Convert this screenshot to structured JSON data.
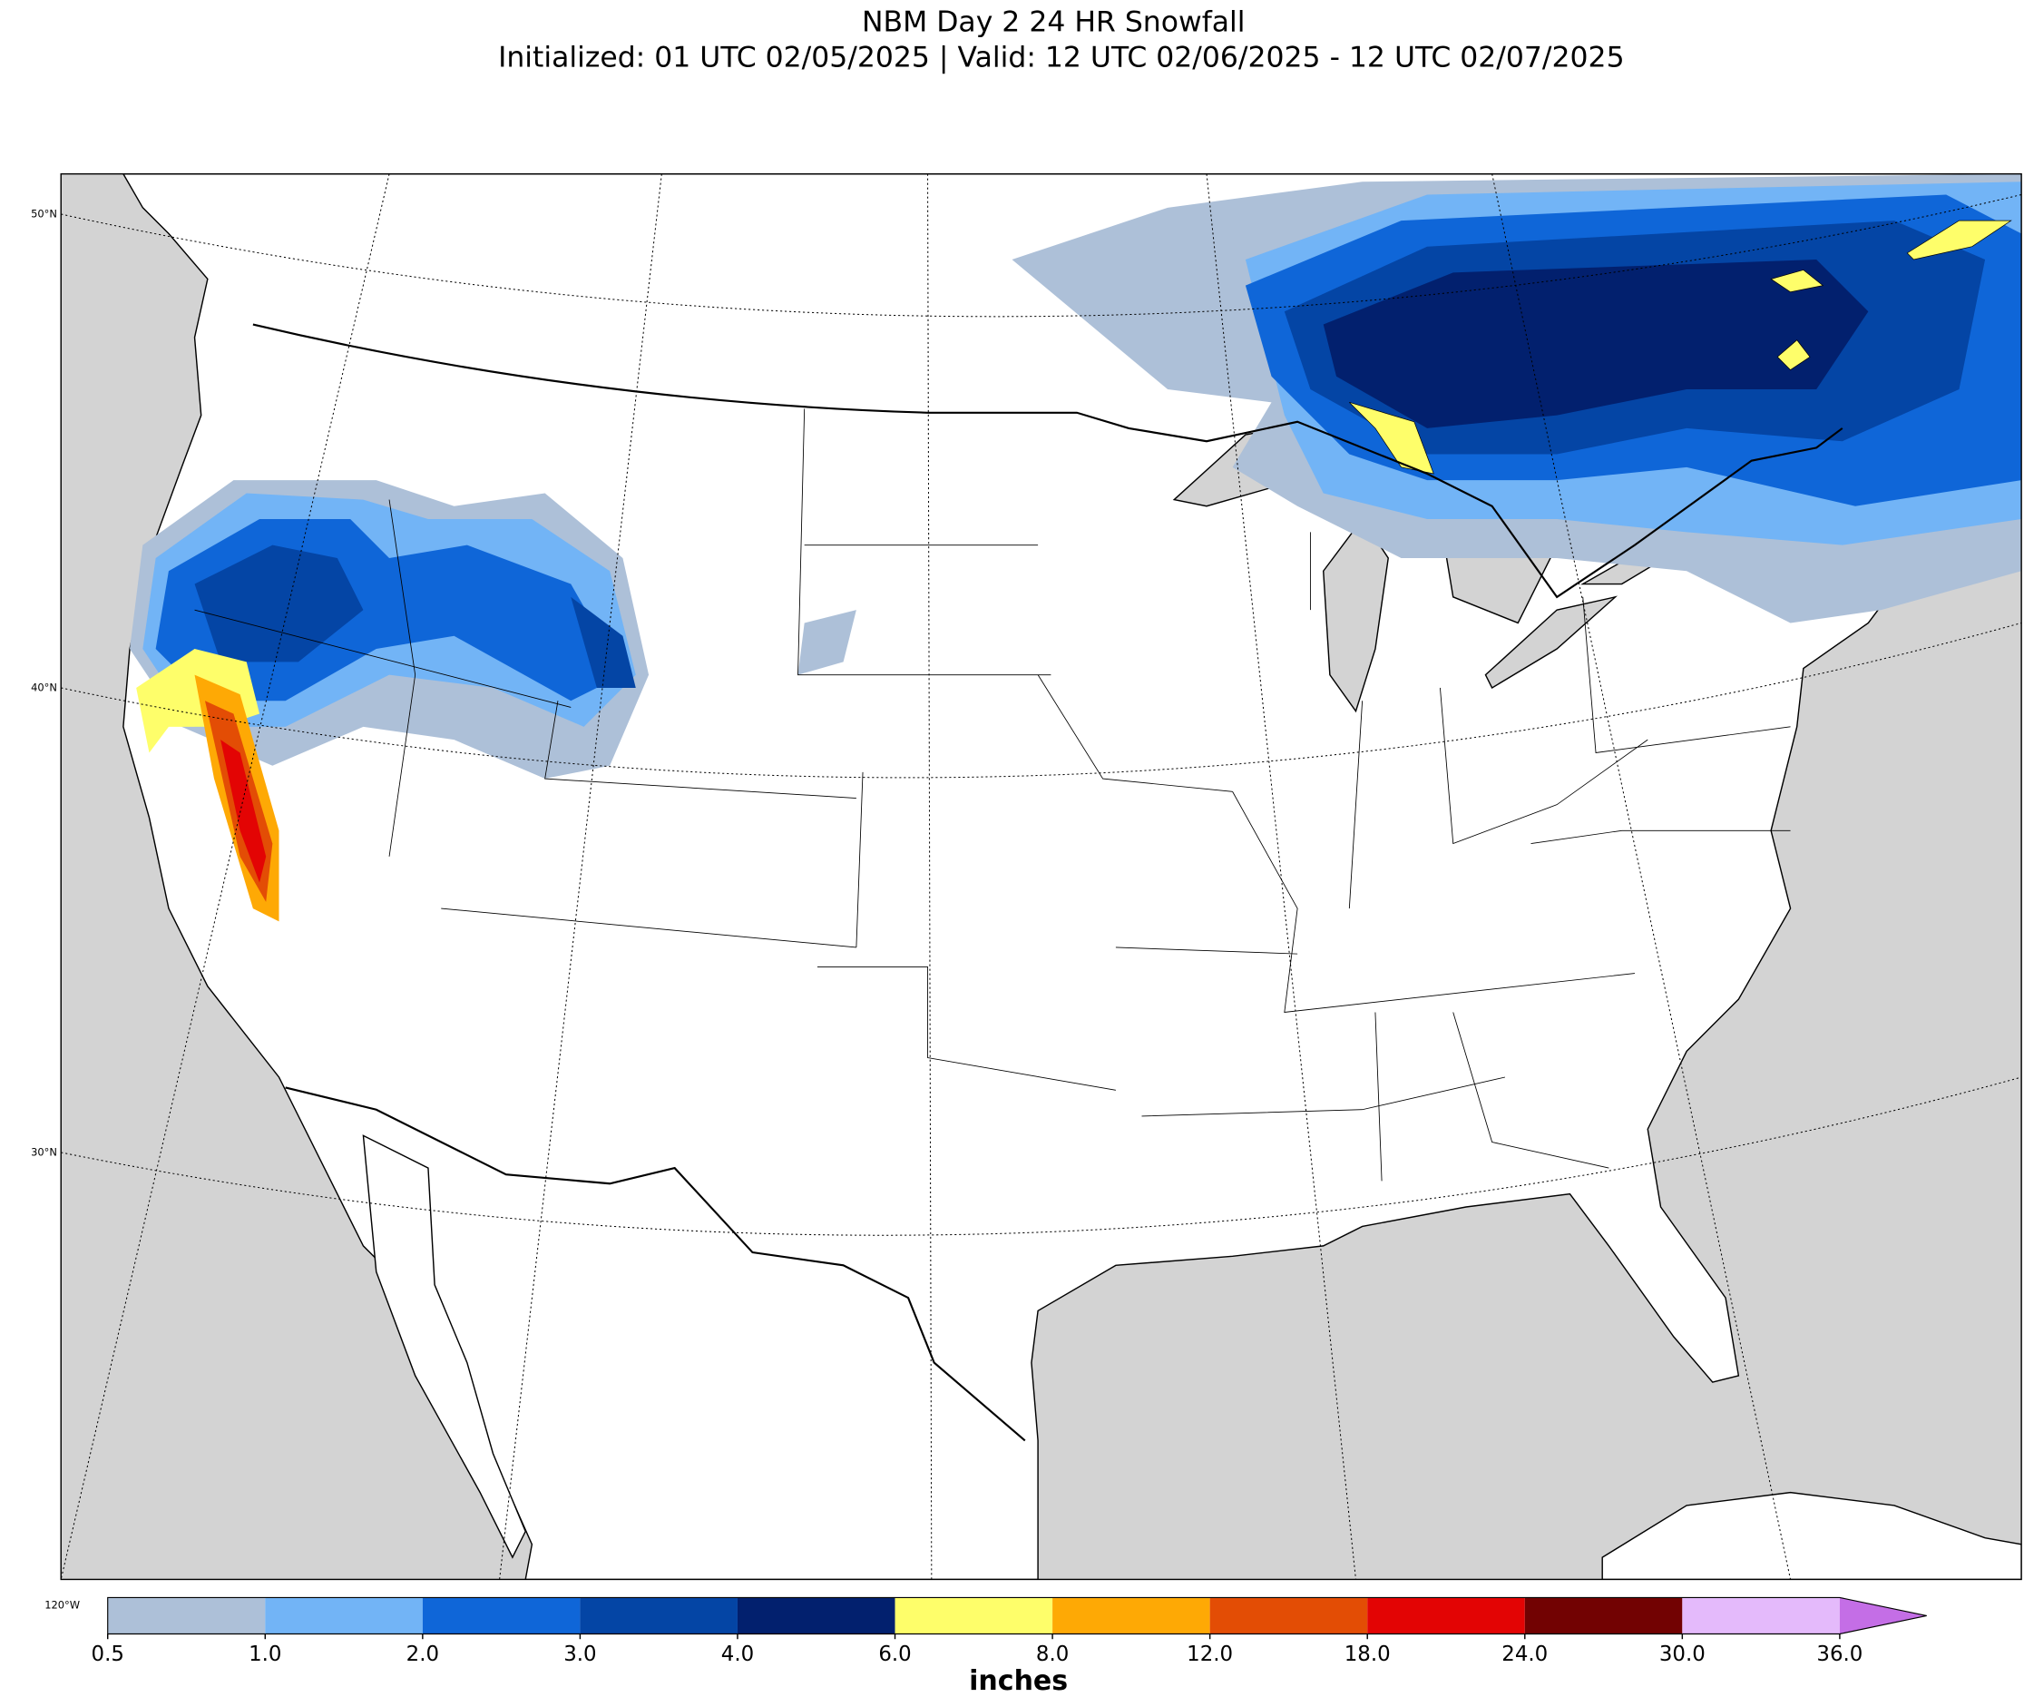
{
  "header": {
    "title": "NBM Day 2 24 HR Snowfall",
    "subtitle": "Initialized: 01 UTC 02/05/2025 | Valid: 12 UTC 02/06/2025 - 12 UTC 02/07/2025"
  },
  "map": {
    "lat_labels": [
      "50°N",
      "40°N",
      "30°N"
    ],
    "lon_labels": [
      "120°W"
    ]
  },
  "colorbar": {
    "label": "inches",
    "colors": [
      "#adc0d8",
      "#72b4f6",
      "#0f66d8",
      "#0445a5",
      "#02206e",
      "#fefe6a",
      "#fea905",
      "#e34d05",
      "#e30404",
      "#720202",
      "#e4bafb",
      "#c46ee6"
    ],
    "ticks": [
      {
        "value": 0.5,
        "label": "0.5"
      },
      {
        "value": 1,
        "label": "1.0"
      },
      {
        "value": 2,
        "label": "2.0"
      },
      {
        "value": 3,
        "label": "3.0"
      },
      {
        "value": 4,
        "label": "4.0"
      },
      {
        "value": 6,
        "label": "6.0"
      },
      {
        "value": 8,
        "label": "8.0"
      },
      {
        "value": 12,
        "label": "12.0"
      },
      {
        "value": 18,
        "label": "18.0"
      },
      {
        "value": 24,
        "label": "24.0"
      },
      {
        "value": 30,
        "label": "30.0"
      },
      {
        "value": 36,
        "label": "36.0"
      }
    ]
  }
}
